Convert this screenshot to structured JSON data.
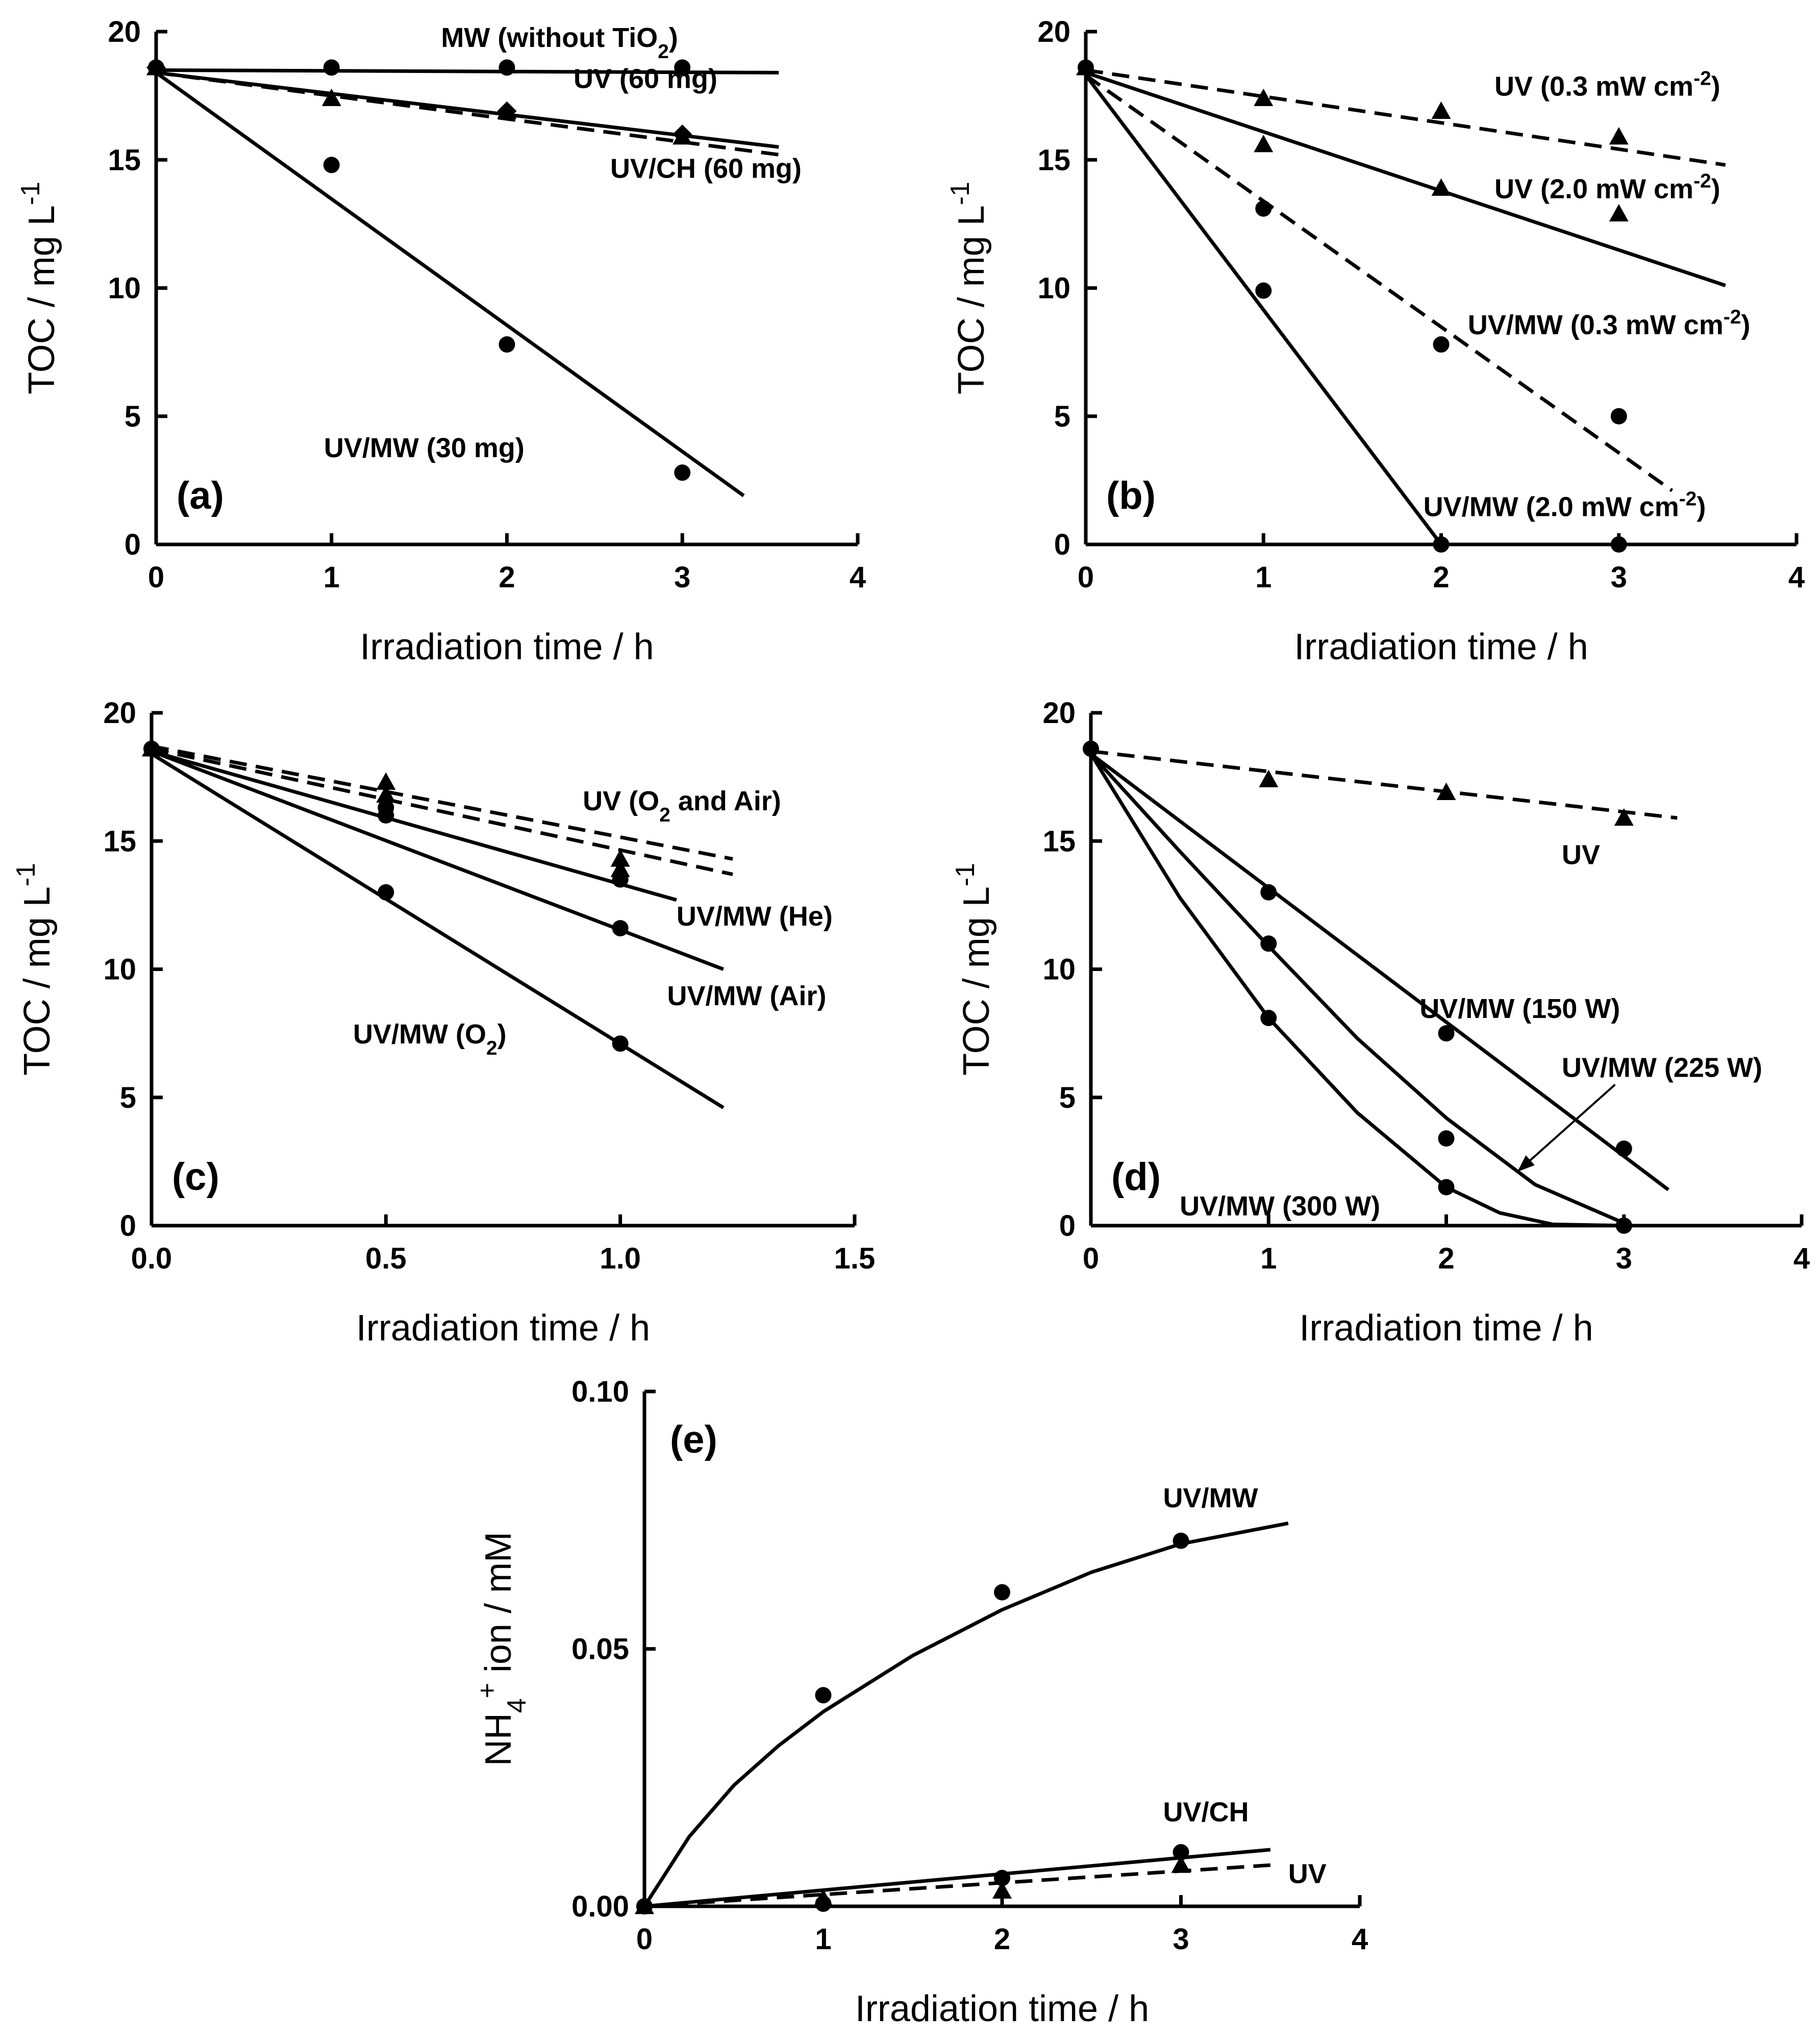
{
  "figure": {
    "background": "#ffffff",
    "ink": "#000000"
  },
  "chart_data": [
    {
      "id": "a",
      "type": "scatter",
      "panel_label": "(a)",
      "xlabel": "Irradiation time / h",
      "ylabel": {
        "base": "TOC / mg L",
        "sup": "-1"
      },
      "xlim": [
        0,
        4
      ],
      "ylim": [
        0,
        20
      ],
      "xticks": [
        "0",
        "1",
        "2",
        "3",
        "4"
      ],
      "yticks": [
        "0",
        "5",
        "10",
        "15",
        "20"
      ],
      "series": [
        {
          "marker": "circle",
          "x": [
            0,
            1,
            2,
            3
          ],
          "y": [
            18.6,
            18.6,
            18.6,
            18.6
          ]
        },
        {
          "marker": "triangle",
          "x": [
            0,
            1,
            2,
            3
          ],
          "y": [
            18.6,
            17.4,
            16.9,
            15.9
          ]
        },
        {
          "marker": "diamond",
          "x": [
            0,
            2,
            3
          ],
          "y": [
            18.6,
            16.9,
            16.0
          ]
        },
        {
          "marker": "circle",
          "x": [
            0,
            1,
            2,
            3
          ],
          "y": [
            18.6,
            14.8,
            7.8,
            2.8
          ]
        }
      ],
      "fit_lines": [
        {
          "style": "solid",
          "x": [
            0,
            3.55
          ],
          "y": [
            18.5,
            18.4
          ]
        },
        {
          "style": "solid",
          "x": [
            0,
            3.55
          ],
          "y": [
            18.4,
            15.5
          ]
        },
        {
          "style": "dashed",
          "x": [
            0,
            3.55
          ],
          "y": [
            18.4,
            15.2
          ]
        },
        {
          "style": "solid",
          "x": [
            0,
            3.35
          ],
          "y": [
            18.4,
            1.9
          ]
        }
      ],
      "annotations": [
        {
          "parts": [
            {
              "t": "MW (without TiO"
            },
            {
              "t": "2",
              "sub": true
            },
            {
              "t": ")"
            }
          ],
          "x": 2.3,
          "y": 19.4,
          "anchor": "middle"
        },
        {
          "parts": [
            {
              "t": "UV (60 mg)"
            }
          ],
          "x": 3.2,
          "y": 17.8,
          "anchor": "end"
        },
        {
          "parts": [
            {
              "t": "UV/CH (60 mg)"
            }
          ],
          "x": 3.68,
          "y": 14.3,
          "anchor": "end"
        },
        {
          "parts": [
            {
              "t": "UV/MW (30 mg)"
            }
          ],
          "x": 2.1,
          "y": 3.4,
          "anchor": "end"
        }
      ]
    },
    {
      "id": "b",
      "type": "scatter",
      "panel_label": "(b)",
      "xlabel": "Irradiation time / h",
      "ylabel": {
        "base": "TOC / mg L",
        "sup": "-1"
      },
      "xlim": [
        0,
        4
      ],
      "ylim": [
        0,
        20
      ],
      "xticks": [
        "0",
        "1",
        "2",
        "3",
        "4"
      ],
      "yticks": [
        "0",
        "5",
        "10",
        "15",
        "20"
      ],
      "series": [
        {
          "marker": "triangle",
          "x": [
            0,
            1,
            2,
            3
          ],
          "y": [
            18.6,
            17.4,
            16.9,
            15.9
          ]
        },
        {
          "marker": "triangle",
          "x": [
            1,
            2,
            3
          ],
          "y": [
            15.6,
            13.9,
            12.9
          ]
        },
        {
          "marker": "circle",
          "x": [
            0,
            1,
            2,
            3
          ],
          "y": [
            18.6,
            13.1,
            7.8,
            5.0
          ]
        },
        {
          "marker": "circle",
          "x": [
            1,
            2,
            3
          ],
          "y": [
            9.9,
            0,
            0
          ]
        }
      ],
      "fit_lines": [
        {
          "style": "dashed",
          "x": [
            0,
            3.6
          ],
          "y": [
            18.5,
            14.8
          ]
        },
        {
          "style": "solid",
          "x": [
            0,
            3.6
          ],
          "y": [
            18.4,
            10.1
          ]
        },
        {
          "style": "dashed",
          "x": [
            0,
            3.3
          ],
          "y": [
            18.3,
            2.1
          ]
        },
        {
          "style": "solid",
          "x": [
            0,
            2.0
          ],
          "y": [
            18.3,
            0
          ]
        }
      ],
      "annotations": [
        {
          "parts": [
            {
              "t": "UV (0.3 mW cm"
            },
            {
              "t": "-2",
              "sup": true
            },
            {
              "t": ")"
            }
          ],
          "x": 2.3,
          "y": 17.5,
          "anchor": "start"
        },
        {
          "parts": [
            {
              "t": "UV (2.0 mW cm"
            },
            {
              "t": "-2",
              "sup": true
            },
            {
              "t": ")"
            }
          ],
          "x": 2.3,
          "y": 13.5,
          "anchor": "start"
        },
        {
          "parts": [
            {
              "t": "UV/MW (0.3 mW cm"
            },
            {
              "t": "-2",
              "sup": true
            },
            {
              "t": ")"
            }
          ],
          "x": 2.15,
          "y": 8.2,
          "anchor": "start"
        },
        {
          "parts": [
            {
              "t": "UV/MW (2.0 mW cm"
            },
            {
              "t": "-2",
              "sup": true
            },
            {
              "t": ")"
            }
          ],
          "x": 1.9,
          "y": 1.1,
          "anchor": "start"
        }
      ]
    },
    {
      "id": "c",
      "type": "scatter",
      "panel_label": "(c)",
      "xlabel": "Irradiation time / h",
      "ylabel": {
        "base": "TOC / mg L",
        "sup": "-1"
      },
      "xlim": [
        0,
        1.5
      ],
      "ylim": [
        0,
        20
      ],
      "xticks": [
        "0.0",
        "0.5",
        "1.0",
        "1.5"
      ],
      "yticks": [
        "0",
        "5",
        "10",
        "15",
        "20"
      ],
      "series": [
        {
          "marker": "triangle",
          "x": [
            0,
            0.5,
            1.0
          ],
          "y": [
            18.6,
            17.3,
            14.3
          ]
        },
        {
          "marker": "triangle",
          "x": [
            0.5,
            1.0
          ],
          "y": [
            16.8,
            13.9
          ]
        },
        {
          "marker": "circle",
          "x": [
            0,
            0.5,
            1.0
          ],
          "y": [
            18.6,
            16.0,
            13.5
          ]
        },
        {
          "marker": "circle",
          "x": [
            0.5,
            1.0
          ],
          "y": [
            16.3,
            11.6
          ]
        },
        {
          "marker": "circle",
          "x": [
            0.5,
            1.0
          ],
          "y": [
            13.0,
            7.1
          ]
        }
      ],
      "fit_lines": [
        {
          "style": "dashed",
          "x": [
            0,
            1.24
          ],
          "y": [
            18.7,
            14.3
          ]
        },
        {
          "style": "dashed",
          "x": [
            0,
            1.24
          ],
          "y": [
            18.6,
            13.7
          ]
        },
        {
          "style": "solid",
          "x": [
            0,
            1.12
          ],
          "y": [
            18.5,
            12.7
          ]
        },
        {
          "style": "solid",
          "x": [
            0,
            1.22
          ],
          "y": [
            18.5,
            10.0
          ]
        },
        {
          "style": "solid",
          "x": [
            0,
            1.22
          ],
          "y": [
            18.4,
            4.6
          ]
        }
      ],
      "annotations": [
        {
          "parts": [
            {
              "t": "UV (O"
            },
            {
              "t": "2",
              "sub": true
            },
            {
              "t": " and Air)"
            }
          ],
          "x": 0.92,
          "y": 16.2,
          "anchor": "start"
        },
        {
          "parts": [
            {
              "t": "UV/MW (He)"
            }
          ],
          "x": 1.12,
          "y": 11.7,
          "anchor": "start"
        },
        {
          "parts": [
            {
              "t": "UV/MW (Air)"
            }
          ],
          "x": 1.1,
          "y": 8.6,
          "anchor": "start"
        },
        {
          "parts": [
            {
              "t": "UV/MW (O"
            },
            {
              "t": "2",
              "sub": true
            },
            {
              "t": ")"
            }
          ],
          "x": 0.43,
          "y": 7.1,
          "anchor": "start"
        }
      ]
    },
    {
      "id": "d",
      "type": "scatter",
      "panel_label": "(d)",
      "xlabel": "Irradiation time / h",
      "ylabel": {
        "base": "TOC / mg L",
        "sup": "-1"
      },
      "xlim": [
        0,
        4
      ],
      "ylim": [
        0,
        20
      ],
      "xticks": [
        "0",
        "1",
        "2",
        "3",
        "4"
      ],
      "yticks": [
        "0",
        "5",
        "10",
        "15",
        "20"
      ],
      "series": [
        {
          "marker": "triangle",
          "x": [
            1,
            2,
            3
          ],
          "y": [
            17.4,
            16.9,
            15.9
          ]
        },
        {
          "marker": "circle",
          "x": [
            0,
            1,
            2,
            3
          ],
          "y": [
            18.6,
            13.0,
            7.5,
            3.0
          ]
        },
        {
          "marker": "circle",
          "x": [
            1,
            2,
            3
          ],
          "y": [
            11.0,
            3.4,
            0
          ]
        },
        {
          "marker": "circle",
          "x": [
            1,
            2,
            3
          ],
          "y": [
            8.1,
            1.5,
            0
          ]
        }
      ],
      "fit_lines": [
        {
          "style": "dashed",
          "x": [
            0,
            3.3
          ],
          "y": [
            18.5,
            15.9
          ]
        },
        {
          "style": "solid",
          "x": [
            0,
            3.25
          ],
          "y": [
            18.4,
            1.4
          ]
        },
        {
          "style": "solid",
          "x": [
            0,
            0.5,
            1.0,
            1.5,
            2.0,
            2.5,
            3.0
          ],
          "y": [
            18.4,
            14.6,
            10.9,
            7.3,
            4.2,
            1.6,
            0.1
          ]
        },
        {
          "style": "solid",
          "x": [
            0,
            0.5,
            1.0,
            1.5,
            2.0,
            2.3,
            2.6,
            3.0
          ],
          "y": [
            18.4,
            12.8,
            8.1,
            4.4,
            1.5,
            0.5,
            0.05,
            0
          ]
        }
      ],
      "arrows": [
        {
          "from": [
            2.95,
            5.5
          ],
          "to": [
            2.4,
            2.1
          ]
        }
      ],
      "annotations": [
        {
          "parts": [
            {
              "t": "UV"
            }
          ],
          "x": 2.65,
          "y": 14.1,
          "anchor": "start"
        },
        {
          "parts": [
            {
              "t": "UV/MW (150 W)"
            }
          ],
          "x": 1.85,
          "y": 8.1,
          "anchor": "start"
        },
        {
          "parts": [
            {
              "t": "UV/MW (225 W)"
            }
          ],
          "x": 2.65,
          "y": 5.8,
          "anchor": "start"
        },
        {
          "parts": [
            {
              "t": "UV/MW (300 W)"
            }
          ],
          "x": 0.5,
          "y": 0.4,
          "anchor": "start"
        }
      ]
    },
    {
      "id": "e",
      "type": "scatter",
      "panel_label": "(e)",
      "xlabel": "Irradiation time / h",
      "ylabel": {
        "parts": [
          {
            "t": "NH"
          },
          {
            "t": "4",
            "sub": true
          },
          {
            "t": "+",
            "sup": true
          },
          {
            "t": " ion / mM"
          }
        ]
      },
      "xlim": [
        0,
        4
      ],
      "ylim": [
        0,
        0.1
      ],
      "xticks": [
        "0",
        "1",
        "2",
        "3",
        "4"
      ],
      "yticks": [
        "0.00",
        "0.05",
        "0.10"
      ],
      "series": [
        {
          "marker": "circle",
          "x": [
            0,
            1,
            2,
            3
          ],
          "y": [
            0,
            0.041,
            0.061,
            0.071
          ]
        },
        {
          "marker": "circle",
          "x": [
            0,
            1,
            2,
            3
          ],
          "y": [
            0,
            0.0005,
            0.0055,
            0.0105
          ]
        },
        {
          "marker": "triangle",
          "x": [
            0,
            1,
            2,
            3
          ],
          "y": [
            0,
            0.0015,
            0.003,
            0.008
          ]
        }
      ],
      "fit_lines": [
        {
          "style": "solid",
          "x": [
            0,
            0.25,
            0.5,
            0.75,
            1.0,
            1.5,
            2.0,
            2.5,
            3.0,
            3.6
          ],
          "y": [
            0,
            0.0135,
            0.0235,
            0.0312,
            0.0378,
            0.0487,
            0.0576,
            0.0649,
            0.0704,
            0.0744
          ]
        },
        {
          "style": "solid",
          "x": [
            0,
            3.5
          ],
          "y": [
            0,
            0.011
          ]
        },
        {
          "style": "dashed",
          "x": [
            0,
            3.5
          ],
          "y": [
            0,
            0.008
          ]
        }
      ],
      "annotations": [
        {
          "parts": [
            {
              "t": "UV/MW"
            }
          ],
          "x": 2.9,
          "y": 0.0775,
          "anchor": "start"
        },
        {
          "parts": [
            {
              "t": "UV/CH"
            }
          ],
          "x": 2.9,
          "y": 0.0165,
          "anchor": "start"
        },
        {
          "parts": [
            {
              "t": "UV"
            }
          ],
          "x": 3.6,
          "y": 0.0045,
          "anchor": "start"
        }
      ]
    }
  ]
}
